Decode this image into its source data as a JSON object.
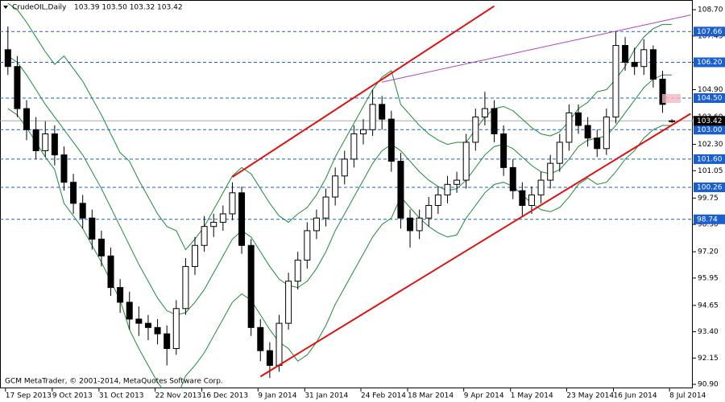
{
  "chart_data": {
    "type": "candlestick",
    "header": {
      "symbol": "CrudeOIL,Daily",
      "quote": "103.39 103.50 103.32 103.42"
    },
    "footer": "GCM MetaTrader, © 2001-2014, MetaQuotes Software Corp.",
    "categories": [
      "17 Sep 2013",
      null,
      null,
      null,
      null,
      "9 Oct 2013",
      null,
      null,
      null,
      null,
      "31 Oct 2013",
      null,
      null,
      null,
      null,
      null,
      "22 Nov 2013",
      null,
      null,
      null,
      null,
      "16 Dec 2013",
      null,
      null,
      null,
      null,
      null,
      "9 Jan 2014",
      null,
      null,
      null,
      null,
      "31 Jan 2014",
      null,
      null,
      null,
      null,
      null,
      "24 Feb 2014",
      null,
      null,
      null,
      null,
      "18 Mar 2014",
      null,
      null,
      null,
      null,
      null,
      "9 Apr 2014",
      null,
      null,
      null,
      null,
      "1 May 2014",
      null,
      null,
      null,
      null,
      null,
      "23 May 2014",
      null,
      null,
      null,
      null,
      "16 Jun 2014",
      null,
      null,
      null,
      null,
      null,
      "8 Jul 2014"
    ],
    "open": [
      106.8,
      106.0,
      104.0,
      103.0,
      102.0,
      102.8,
      101.8,
      100.5,
      99.5,
      98.8,
      97.8,
      97.0,
      95.5,
      94.8,
      94.0,
      93.8,
      93.6,
      93.3,
      92.6,
      94.5,
      96.5,
      97.5,
      98.4,
      98.6,
      99.0,
      100.0,
      97.5,
      93.6,
      92.5,
      91.8,
      93.8,
      95.8,
      96.8,
      98.2,
      98.8,
      99.8,
      100.8,
      101.6,
      102.8,
      103.0,
      104.2,
      103.5,
      101.5,
      98.8,
      98.2,
      98.8,
      99.4,
      99.9,
      100.4,
      100.6,
      102.4,
      103.6,
      104.0,
      102.8,
      101.2,
      100.1,
      99.4,
      99.9,
      100.6,
      101.4,
      102.4,
      103.8,
      103.2,
      102.6,
      102.1,
      103.6,
      107.0,
      106.2,
      106.0,
      106.8,
      105.4,
      103.39
    ],
    "high": [
      107.9,
      106.5,
      104.4,
      103.6,
      103.4,
      103.2,
      102.2,
      100.9,
      99.9,
      99.2,
      98.2,
      97.4,
      95.9,
      95.3,
      94.6,
      94.2,
      94.0,
      93.7,
      94.9,
      96.9,
      97.9,
      98.9,
      99.0,
      99.4,
      100.5,
      100.3,
      97.8,
      94.0,
      92.9,
      94.2,
      96.2,
      97.2,
      98.6,
      99.2,
      100.2,
      101.2,
      102.0,
      103.2,
      103.5,
      104.9,
      104.6,
      103.9,
      101.9,
      99.2,
      99.2,
      99.8,
      100.3,
      100.8,
      101.0,
      102.8,
      104.0,
      104.8,
      104.4,
      103.2,
      101.6,
      100.5,
      100.3,
      101.0,
      101.8,
      102.8,
      104.2,
      104.2,
      103.6,
      103.0,
      104.0,
      107.66,
      107.4,
      106.9,
      107.3,
      107.0,
      105.8,
      103.5
    ],
    "low": [
      105.6,
      103.6,
      102.5,
      101.6,
      101.7,
      101.3,
      100.1,
      99.0,
      98.3,
      97.3,
      96.5,
      95.1,
      94.3,
      93.5,
      93.2,
      93.0,
      92.8,
      91.8,
      92.3,
      94.2,
      96.1,
      97.2,
      97.9,
      98.2,
      98.7,
      97.1,
      93.2,
      92.0,
      91.2,
      91.5,
      93.5,
      95.4,
      96.4,
      97.8,
      98.4,
      99.4,
      100.4,
      101.2,
      102.3,
      102.7,
      103.0,
      101.0,
      98.3,
      97.4,
      97.8,
      98.4,
      99.0,
      99.5,
      100.0,
      100.2,
      102.0,
      103.2,
      102.4,
      100.8,
      99.7,
      98.9,
      99.0,
      99.5,
      100.2,
      101.0,
      102.0,
      102.8,
      102.2,
      101.7,
      101.8,
      103.3,
      105.8,
      105.6,
      105.6,
      105.0,
      103.8,
      103.32
    ],
    "close": [
      106.0,
      104.0,
      103.0,
      102.0,
      102.8,
      101.8,
      100.5,
      99.5,
      98.8,
      97.8,
      97.0,
      95.5,
      94.8,
      94.0,
      93.8,
      93.6,
      93.3,
      92.6,
      94.5,
      96.5,
      97.5,
      98.4,
      98.6,
      99.0,
      100.0,
      97.5,
      93.6,
      92.5,
      91.8,
      93.8,
      95.8,
      96.8,
      98.2,
      98.8,
      99.8,
      100.8,
      101.6,
      102.8,
      103.0,
      104.2,
      103.5,
      101.5,
      98.8,
      98.2,
      98.8,
      99.4,
      99.9,
      100.4,
      100.6,
      102.4,
      103.6,
      104.0,
      102.8,
      101.2,
      100.1,
      99.4,
      99.9,
      100.6,
      101.4,
      102.4,
      103.8,
      103.2,
      102.6,
      102.1,
      103.6,
      107.0,
      106.2,
      106.0,
      106.8,
      105.4,
      104.2,
      103.42
    ],
    "bands": {
      "color": "#1e8a3a",
      "upper": [
        109.0,
        108.7,
        108.1,
        107.4,
        106.7,
        106.1,
        106.5,
        105.9,
        105.3,
        104.5,
        103.7,
        102.8,
        101.9,
        101.5,
        100.6,
        99.8,
        99.0,
        98.4,
        98.2,
        97.3,
        97.8,
        98.4,
        99.2,
        100.0,
        100.8,
        101.2,
        100.9,
        100.2,
        99.5,
        98.9,
        98.6,
        99.0,
        99.3,
        99.9,
        100.7,
        101.7,
        102.5,
        103.3,
        104.1,
        104.9,
        105.5,
        105.8,
        104.2,
        103.7,
        103.2,
        102.8,
        102.5,
        102.3,
        102.4,
        102.4,
        103.0,
        103.6,
        104.0,
        104.1,
        103.9,
        103.5,
        103.1,
        102.8,
        102.7,
        102.9,
        103.4,
        104.0,
        104.3,
        104.8,
        104.9,
        105.4,
        106.0,
        106.8,
        107.4,
        107.8,
        108.0,
        108.0
      ],
      "middle": [
        106.5,
        106.2,
        105.6,
        104.9,
        104.2,
        103.6,
        103.0,
        102.4,
        101.8,
        101.0,
        100.2,
        99.3,
        98.4,
        97.5,
        96.6,
        95.8,
        95.0,
        94.4,
        94.2,
        94.3,
        94.8,
        95.4,
        96.2,
        97.0,
        97.8,
        98.2,
        97.9,
        97.2,
        96.5,
        95.9,
        95.6,
        95.5,
        95.8,
        96.4,
        97.2,
        98.2,
        99.0,
        99.8,
        100.6,
        101.4,
        102.0,
        102.3,
        102.0,
        101.5,
        101.0,
        100.6,
        100.3,
        100.1,
        100.2,
        100.6,
        101.2,
        101.8,
        102.2,
        102.3,
        102.1,
        101.7,
        101.3,
        101.0,
        100.9,
        101.1,
        101.6,
        102.2,
        102.5,
        102.6,
        102.7,
        103.2,
        103.8,
        104.4,
        105.0,
        105.4,
        105.6,
        105.6
      ],
      "lower": [
        104.0,
        103.7,
        103.1,
        102.4,
        101.7,
        101.1,
        99.5,
        98.9,
        98.3,
        97.5,
        96.7,
        95.8,
        94.9,
        93.5,
        92.6,
        91.8,
        91.0,
        90.4,
        90.2,
        91.3,
        91.8,
        92.4,
        93.2,
        94.0,
        94.8,
        95.2,
        94.9,
        94.2,
        93.5,
        92.9,
        92.6,
        92.0,
        92.3,
        92.9,
        93.7,
        94.7,
        95.5,
        96.3,
        97.1,
        97.9,
        98.5,
        98.8,
        99.8,
        99.3,
        98.8,
        98.4,
        98.1,
        97.9,
        98.0,
        98.8,
        99.4,
        100.0,
        100.4,
        100.5,
        100.3,
        99.9,
        99.5,
        99.2,
        99.1,
        99.3,
        99.8,
        100.4,
        100.7,
        100.4,
        100.5,
        101.0,
        101.6,
        102.0,
        102.6,
        103.0,
        103.2,
        103.2
      ]
    },
    "trendlines": [
      {
        "color": "#e01010",
        "points": [
          [
            24,
            100.75
          ],
          [
            52,
            108.87
          ]
        ]
      },
      {
        "color": "#e01010",
        "points": [
          [
            27,
            91.27
          ],
          [
            73,
            103.76
          ]
        ]
      },
      {
        "color": "#b040c0",
        "points": [
          [
            40,
            105.26
          ],
          [
            73,
            108.45
          ]
        ]
      }
    ],
    "levels": [
      {
        "value": 107.66,
        "label": "107.66"
      },
      {
        "value": 106.2,
        "label": "106.20"
      },
      {
        "value": 104.5,
        "label": "104.50"
      },
      {
        "value": 103,
        "label": "103.00"
      },
      {
        "value": 101.6,
        "label": "101.60"
      },
      {
        "value": 100.26,
        "label": "100.26"
      },
      {
        "value": 98.74,
        "label": "98.74"
      }
    ],
    "level_color": "#1a5fd0",
    "current": 103.42,
    "ylim": [
      90.71,
      109.16
    ],
    "yticks": [
      {
        "value": 108.7,
        "label": "108.70"
      },
      {
        "value": 107.45,
        "label": "107.45"
      },
      {
        "value": 106.2,
        "label": "106.20"
      },
      {
        "value": 104.9,
        "label": "104.90"
      },
      {
        "value": 103.6,
        "label": "103.60"
      },
      {
        "value": 102.3,
        "label": "102.30"
      },
      {
        "value": 101.05,
        "label": "101.05"
      },
      {
        "value": 99.75,
        "label": "99.75"
      },
      {
        "value": 98.5,
        "label": "98.50"
      },
      {
        "value": 97.2,
        "label": "97.20"
      },
      {
        "value": 95.95,
        "label": "95.95"
      },
      {
        "value": 94.65,
        "label": "94.65"
      },
      {
        "value": 93.4,
        "label": "93.40"
      },
      {
        "value": 92.15,
        "label": "92.15"
      },
      {
        "value": 90.9,
        "label": "90.90"
      }
    ]
  }
}
